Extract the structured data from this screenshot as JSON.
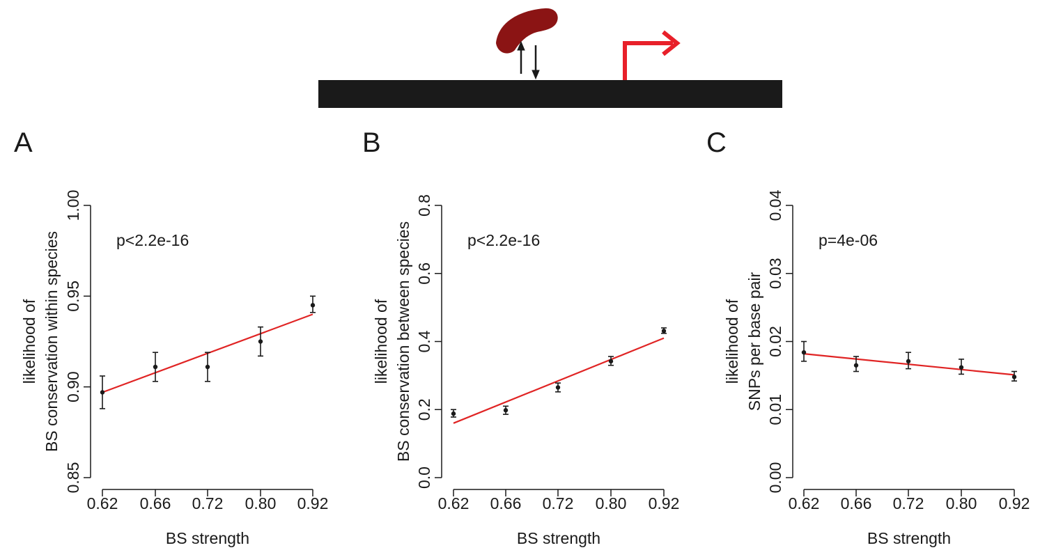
{
  "colors": {
    "dna": "#1a1a1a",
    "protein": "#8b1414",
    "promoter_arrow": "#e8202a",
    "fit_line": "#e02424",
    "points": "#1a1a1a"
  },
  "chart_data": [
    {
      "panel": "A",
      "type": "scatter",
      "annotation": "p<2.2e-16",
      "xlabel": "BS strength",
      "ylabel_lines": [
        "likelihood of",
        "BS conservation within species"
      ],
      "x_categories": [
        "0.62",
        "0.66",
        "0.72",
        "0.80",
        "0.92"
      ],
      "yticks": [
        "0.85",
        "0.90",
        "0.95",
        "1.00"
      ],
      "ylim": [
        0.85,
        1.0
      ],
      "points": [
        {
          "y": 0.897,
          "lo": 0.888,
          "hi": 0.906
        },
        {
          "y": 0.911,
          "lo": 0.903,
          "hi": 0.919
        },
        {
          "y": 0.911,
          "lo": 0.903,
          "hi": 0.919
        },
        {
          "y": 0.925,
          "lo": 0.917,
          "hi": 0.933
        },
        {
          "y": 0.945,
          "lo": 0.941,
          "hi": 0.95
        }
      ],
      "fit": [
        0.897,
        0.94
      ]
    },
    {
      "panel": "B",
      "type": "scatter",
      "annotation": "p<2.2e-16",
      "xlabel": "BS strength",
      "ylabel_lines": [
        "likelihood of",
        "BS conservation between species"
      ],
      "x_categories": [
        "0.62",
        "0.66",
        "0.72",
        "0.80",
        "0.92"
      ],
      "yticks": [
        "0.0",
        "0.2",
        "0.4",
        "0.6",
        "0.8"
      ],
      "ylim": [
        0.0,
        0.8
      ],
      "points": [
        {
          "y": 0.188,
          "lo": 0.178,
          "hi": 0.2
        },
        {
          "y": 0.198,
          "lo": 0.186,
          "hi": 0.21
        },
        {
          "y": 0.265,
          "lo": 0.252,
          "hi": 0.278
        },
        {
          "y": 0.342,
          "lo": 0.33,
          "hi": 0.356
        },
        {
          "y": 0.431,
          "lo": 0.424,
          "hi": 0.44
        }
      ],
      "fit": [
        0.16,
        0.41
      ]
    },
    {
      "panel": "C",
      "type": "scatter",
      "annotation": "p=4e-06",
      "xlabel": "BS strength",
      "ylabel_lines": [
        "likelihood of",
        "SNPs per base pair"
      ],
      "x_categories": [
        "0.62",
        "0.66",
        "0.72",
        "0.80",
        "0.92"
      ],
      "yticks": [
        "0.00",
        "0.01",
        "0.02",
        "0.03",
        "0.04"
      ],
      "ylim": [
        0.0,
        0.04
      ],
      "points": [
        {
          "y": 0.0184,
          "lo": 0.0171,
          "hi": 0.02
        },
        {
          "y": 0.0165,
          "lo": 0.0156,
          "hi": 0.0178
        },
        {
          "y": 0.0171,
          "lo": 0.016,
          "hi": 0.0184
        },
        {
          "y": 0.0162,
          "lo": 0.0152,
          "hi": 0.0174
        },
        {
          "y": 0.0148,
          "lo": 0.0142,
          "hi": 0.0156
        }
      ],
      "fit": [
        0.0182,
        0.0151
      ]
    }
  ]
}
